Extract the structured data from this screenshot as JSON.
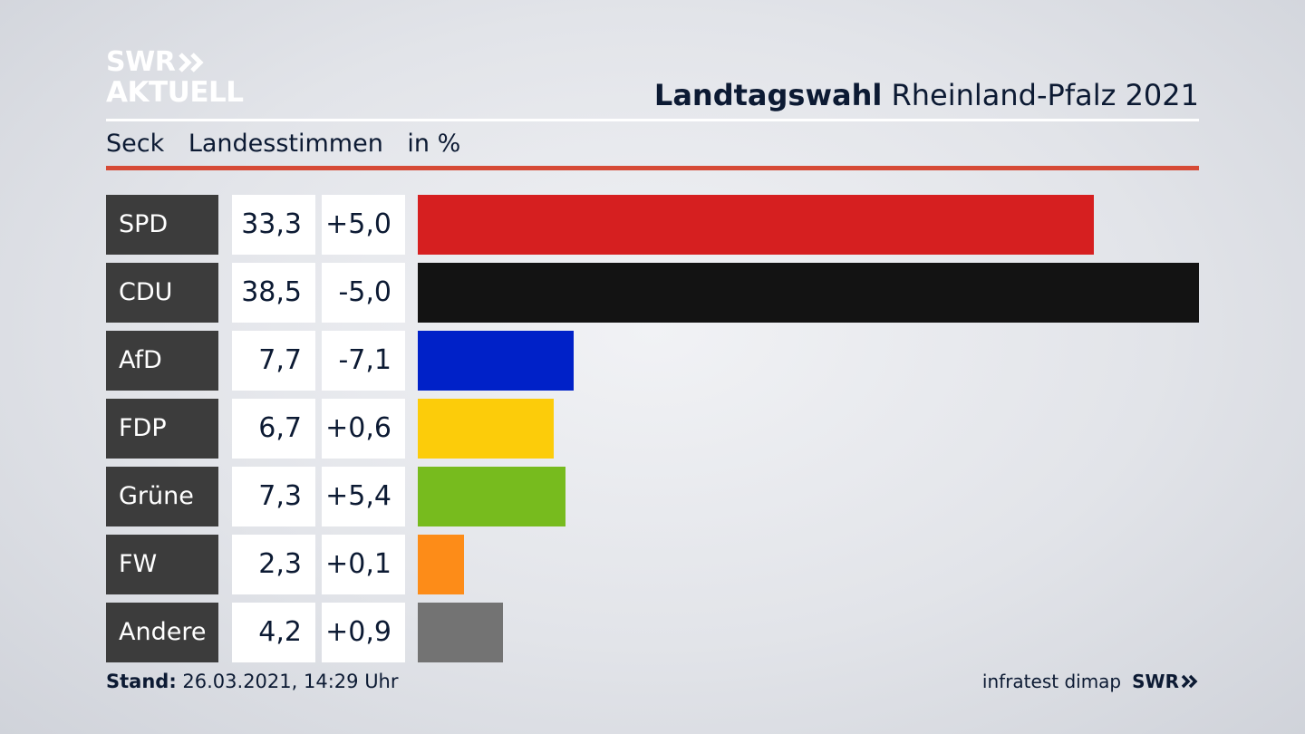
{
  "brand": {
    "logo_line1": "SWR",
    "logo_line2": "AKTUELL"
  },
  "header": {
    "title_bold": "Landtagswahl",
    "title_rest": "Rheinland-Pfalz 2021"
  },
  "subheader": {
    "constituency": "Seck",
    "vote_type": "Landesstimmen",
    "unit": "in %"
  },
  "chart_data": {
    "type": "bar",
    "orientation": "horizontal",
    "categories": [
      "SPD",
      "CDU",
      "AfD",
      "FDP",
      "Grüne",
      "FW",
      "Andere"
    ],
    "values": [
      33.3,
      38.5,
      7.7,
      6.7,
      7.3,
      2.3,
      4.2
    ],
    "value_labels": [
      "33,3",
      "38,5",
      "7,7",
      "6,7",
      "7,3",
      "2,3",
      "4,2"
    ],
    "changes": [
      5.0,
      -5.0,
      -7.1,
      0.6,
      5.4,
      0.1,
      0.9
    ],
    "change_labels": [
      "+5,0",
      "-5,0",
      "-7,1",
      "+0,6",
      "+5,4",
      "+0,1",
      "+0,9"
    ],
    "colors": [
      "#d61f20",
      "#131313",
      "#0021c8",
      "#fccc0a",
      "#77bb1e",
      "#fd8c18",
      "#737373"
    ],
    "xlim": [
      0,
      38.5
    ]
  },
  "footer": {
    "stand_label": "Stand:",
    "stand_value": "26.03.2021, 14:29 Uhr",
    "source": "infratest dimap",
    "source_brand": "SWR"
  }
}
